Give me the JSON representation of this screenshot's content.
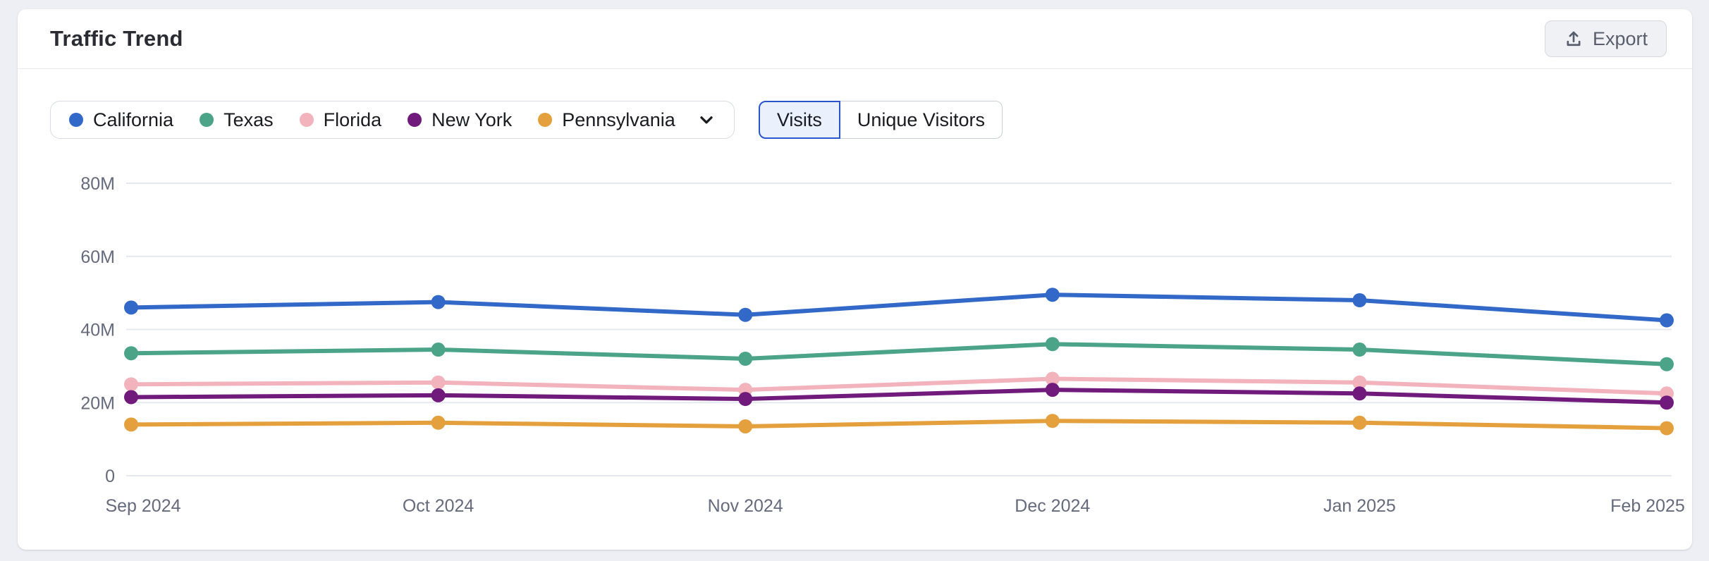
{
  "header": {
    "title": "Traffic Trend",
    "export_label": "Export"
  },
  "controls": {
    "legend": {
      "items": [
        {
          "label": "California",
          "color": "#3269C9"
        },
        {
          "label": "Texas",
          "color": "#4BA487"
        },
        {
          "label": "Florida",
          "color": "#F3B3BC"
        },
        {
          "label": "New York",
          "color": "#701A7C"
        },
        {
          "label": "Pennsylvania",
          "color": "#E4A03D"
        }
      ]
    },
    "metric_toggle": {
      "options": [
        {
          "label": "Visits",
          "selected": true
        },
        {
          "label": "Unique Visitors",
          "selected": false
        }
      ]
    }
  },
  "chart_data": {
    "type": "line",
    "title": "Traffic Trend",
    "x": [
      "Sep 2024",
      "Oct 2024",
      "Nov 2024",
      "Dec 2024",
      "Jan 2025",
      "Feb 2025"
    ],
    "series": [
      {
        "name": "California",
        "color": "#3269C9",
        "values": [
          46.0,
          47.5,
          44.0,
          49.5,
          48.0,
          42.5
        ]
      },
      {
        "name": "Texas",
        "color": "#4BA487",
        "values": [
          33.5,
          34.5,
          32.0,
          36.0,
          34.5,
          30.5
        ]
      },
      {
        "name": "Florida",
        "color": "#F3B3BC",
        "values": [
          25.0,
          25.5,
          23.5,
          26.5,
          25.5,
          22.5
        ]
      },
      {
        "name": "New York",
        "color": "#701A7C",
        "values": [
          21.5,
          22.0,
          21.0,
          23.5,
          22.5,
          20.0
        ]
      },
      {
        "name": "Pennsylvania",
        "color": "#E4A03D",
        "values": [
          14.0,
          14.5,
          13.5,
          15.0,
          14.5,
          13.0
        ]
      }
    ],
    "value_unit": "M",
    "yticks": [
      0,
      20,
      40,
      60,
      80
    ],
    "ytick_labels": [
      "0",
      "20M",
      "40M",
      "60M",
      "80M"
    ],
    "ylim": [
      0,
      80
    ],
    "grid": true,
    "legend_position": "top-left"
  },
  "theme": {
    "grid_color": "#E6E8EF",
    "axis_text_color": "#656A7D"
  }
}
